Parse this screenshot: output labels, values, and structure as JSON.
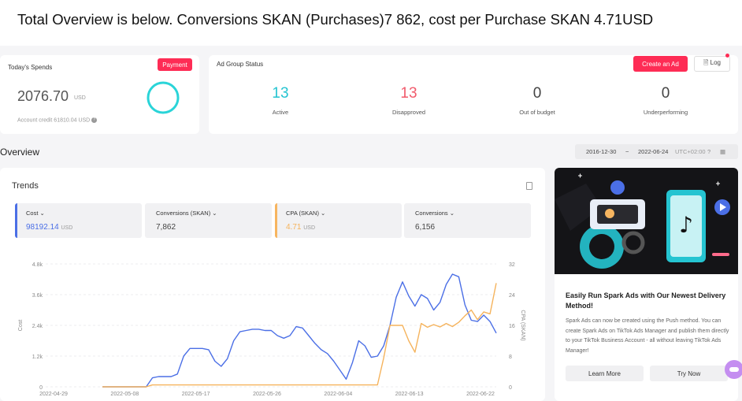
{
  "caption": "Total Overview is below. Conversions SKAN (Purchases)7 862, cost per Purchase SKAN 4.71USD",
  "spends": {
    "label": "Today's Spends",
    "payment_label": "Payment",
    "amount": "2076.70",
    "unit": "USD",
    "credit": "Account credit 61810.04 USD"
  },
  "ad_group": {
    "label": "Ad Group Status",
    "create_label": "Create an Ad",
    "log_label": "Log",
    "stats": [
      {
        "value": "13",
        "label": "Active",
        "color": "#25c4d1"
      },
      {
        "value": "13",
        "label": "Disapproved",
        "color": "#f15b6c"
      },
      {
        "value": "0",
        "label": "Out of budget",
        "color": "#444444"
      },
      {
        "value": "0",
        "label": "Underperforming",
        "color": "#444444"
      }
    ]
  },
  "overview": {
    "title": "Overview",
    "date_start": "2016-12-30",
    "date_sep": "~",
    "date_end": "2022-06-24",
    "timezone": "UTC+02:00"
  },
  "trends": {
    "title": "Trends",
    "metrics": [
      {
        "name": "Cost",
        "value": "98192.14",
        "unit": "USD",
        "accent": "#4b6fe6"
      },
      {
        "name": "Conversions (SKAN)",
        "value": "7,862",
        "unit": "",
        "accent": ""
      },
      {
        "name": "CPA (SKAN)",
        "value": "4.71",
        "unit": "USD",
        "accent": "#f7b560"
      },
      {
        "name": "Conversions",
        "value": "6,156",
        "unit": "",
        "accent": ""
      }
    ]
  },
  "chart_data": {
    "type": "line",
    "ylabel": "Cost",
    "y2label": "CPA (SKAN)",
    "ylim": [
      0,
      4800
    ],
    "y2lim": [
      0,
      32
    ],
    "yticks": [
      "0",
      "1.2k",
      "2.4k",
      "3.6k",
      "4.8k"
    ],
    "y2ticks": [
      "0",
      "8",
      "16",
      "24",
      "32"
    ],
    "xticks": [
      "2022-04-29",
      "2022-05-08",
      "2022-05-17",
      "2022-05-26",
      "2022-06-04",
      "2022-06-13",
      "2022-06-22"
    ],
    "grid": true,
    "series": [
      {
        "name": "Cost",
        "color": "#4b6fe6",
        "axis": "left",
        "values": [
          0,
          0,
          0,
          0,
          0,
          0,
          0,
          0,
          350,
          400,
          400,
          400,
          500,
          1200,
          1500,
          1500,
          1500,
          1450,
          1000,
          800,
          1100,
          1800,
          2150,
          2200,
          2250,
          2250,
          2200,
          2200,
          2000,
          1900,
          2000,
          2350,
          2300,
          2000,
          1700,
          1450,
          1300,
          1000,
          650,
          300,
          950,
          1800,
          1600,
          1150,
          1200,
          1600,
          2400,
          3500,
          4100,
          3550,
          3150,
          3600,
          3450,
          3000,
          3300,
          4000,
          4400,
          4300,
          3200,
          2600,
          2550,
          2800,
          2550,
          2100
        ]
      },
      {
        "name": "CPA (SKAN)",
        "color": "#f5b35c",
        "axis": "right",
        "values": [
          0,
          0,
          0,
          0,
          0,
          0,
          0,
          0,
          0.5,
          0.5,
          0.5,
          0.5,
          0.5,
          0.5,
          0.5,
          0.5,
          0.5,
          0.5,
          0.5,
          0.5,
          0.5,
          0.5,
          0.5,
          0.5,
          0.5,
          0.5,
          0.5,
          0.5,
          0.5,
          0.5,
          0.5,
          0.5,
          0.5,
          0.5,
          0.5,
          0.5,
          0.5,
          0.5,
          0.5,
          0.5,
          0.5,
          0.5,
          0.5,
          0.5,
          0.5,
          7.5,
          16,
          16,
          16,
          12,
          9,
          16.5,
          15.5,
          16.2,
          15.6,
          16.5,
          15.7,
          16.8,
          18.5,
          20,
          17.5,
          19.5,
          19,
          27
        ]
      }
    ]
  },
  "promo": {
    "title": "Easily Run Spark Ads with Our Newest Delivery Method!",
    "body": "Spark Ads can now be created using the Push method. You can create Spark Ads on TikTok Ads Manager and publish them directly to your TikTok Business Account - all without leaving TikTok Ads Manager!",
    "learn_more": "Learn More",
    "try_now": "Try Now"
  }
}
